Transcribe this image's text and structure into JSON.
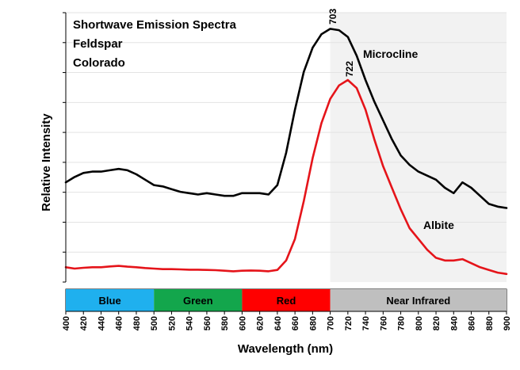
{
  "chart_data": {
    "type": "line",
    "title_lines": [
      "Shortwave Emission Spectra",
      "Feldspar",
      "Colorado"
    ],
    "xlabel": "Wavelength (nm)",
    "ylabel": "Relative Intensity",
    "xlim": [
      400,
      900
    ],
    "ylim": [
      0,
      100
    ],
    "x_ticks": [
      400,
      420,
      440,
      460,
      480,
      500,
      520,
      540,
      560,
      580,
      600,
      620,
      640,
      660,
      680,
      700,
      720,
      740,
      760,
      780,
      800,
      820,
      840,
      860,
      880,
      900
    ],
    "shaded_region": {
      "from": 700,
      "to": 900,
      "color": "#f2f2f2"
    },
    "bands": [
      {
        "label": "Blue",
        "from": 400,
        "to": 500,
        "color": "#1fb0ee"
      },
      {
        "label": "Green",
        "from": 500,
        "to": 600,
        "color": "#13a64c"
      },
      {
        "label": "Red",
        "from": 600,
        "to": 700,
        "color": "#ff0000"
      },
      {
        "label": "Near Infrared",
        "from": 700,
        "to": 900,
        "color": "#bfbfbf"
      }
    ],
    "series": [
      {
        "name": "Microcline",
        "color": "#000000",
        "peak": {
          "x": 703,
          "label": "703"
        },
        "x": [
          400,
          410,
          420,
          430,
          440,
          450,
          460,
          470,
          480,
          490,
          500,
          510,
          520,
          530,
          540,
          550,
          560,
          570,
          580,
          590,
          600,
          610,
          620,
          630,
          640,
          650,
          660,
          670,
          680,
          690,
          700,
          710,
          720,
          730,
          740,
          750,
          760,
          770,
          780,
          790,
          800,
          810,
          820,
          830,
          840,
          850,
          860,
          870,
          880,
          890,
          900
        ],
        "y": [
          37,
          39,
          40.5,
          41,
          41,
          41.5,
          42,
          41.5,
          40,
          38,
          36,
          35.5,
          34.5,
          33.5,
          33,
          32.5,
          33,
          32.5,
          32,
          32,
          33,
          33,
          33,
          32.5,
          36,
          48,
          64,
          78,
          87,
          92,
          94,
          93.5,
          91,
          84,
          75,
          67,
          60,
          53,
          47,
          43.5,
          41,
          39.5,
          38,
          35,
          33,
          37,
          35,
          32,
          29,
          28,
          27.5
        ]
      },
      {
        "name": "Albite",
        "color": "#e5141a",
        "peak": {
          "x": 722,
          "label": "722"
        },
        "x": [
          400,
          410,
          420,
          430,
          440,
          450,
          460,
          470,
          480,
          490,
          500,
          510,
          520,
          530,
          540,
          550,
          560,
          570,
          580,
          590,
          600,
          610,
          620,
          630,
          640,
          650,
          660,
          670,
          680,
          690,
          700,
          710,
          720,
          730,
          740,
          750,
          760,
          770,
          780,
          790,
          800,
          810,
          820,
          830,
          840,
          850,
          860,
          870,
          880,
          890,
          900
        ],
        "y": [
          5.5,
          5,
          5.3,
          5.5,
          5.5,
          5.8,
          6,
          5.7,
          5.5,
          5.2,
          5,
          4.8,
          4.8,
          4.7,
          4.6,
          4.6,
          4.5,
          4.4,
          4.2,
          4,
          4.2,
          4.3,
          4.2,
          4,
          4.5,
          8,
          16,
          30,
          46,
          59,
          68,
          73,
          75,
          72,
          64,
          53,
          43,
          35,
          27,
          20,
          16,
          12,
          9,
          8,
          8,
          8.5,
          7,
          5.5,
          4.5,
          3.5,
          3
        ]
      }
    ]
  }
}
